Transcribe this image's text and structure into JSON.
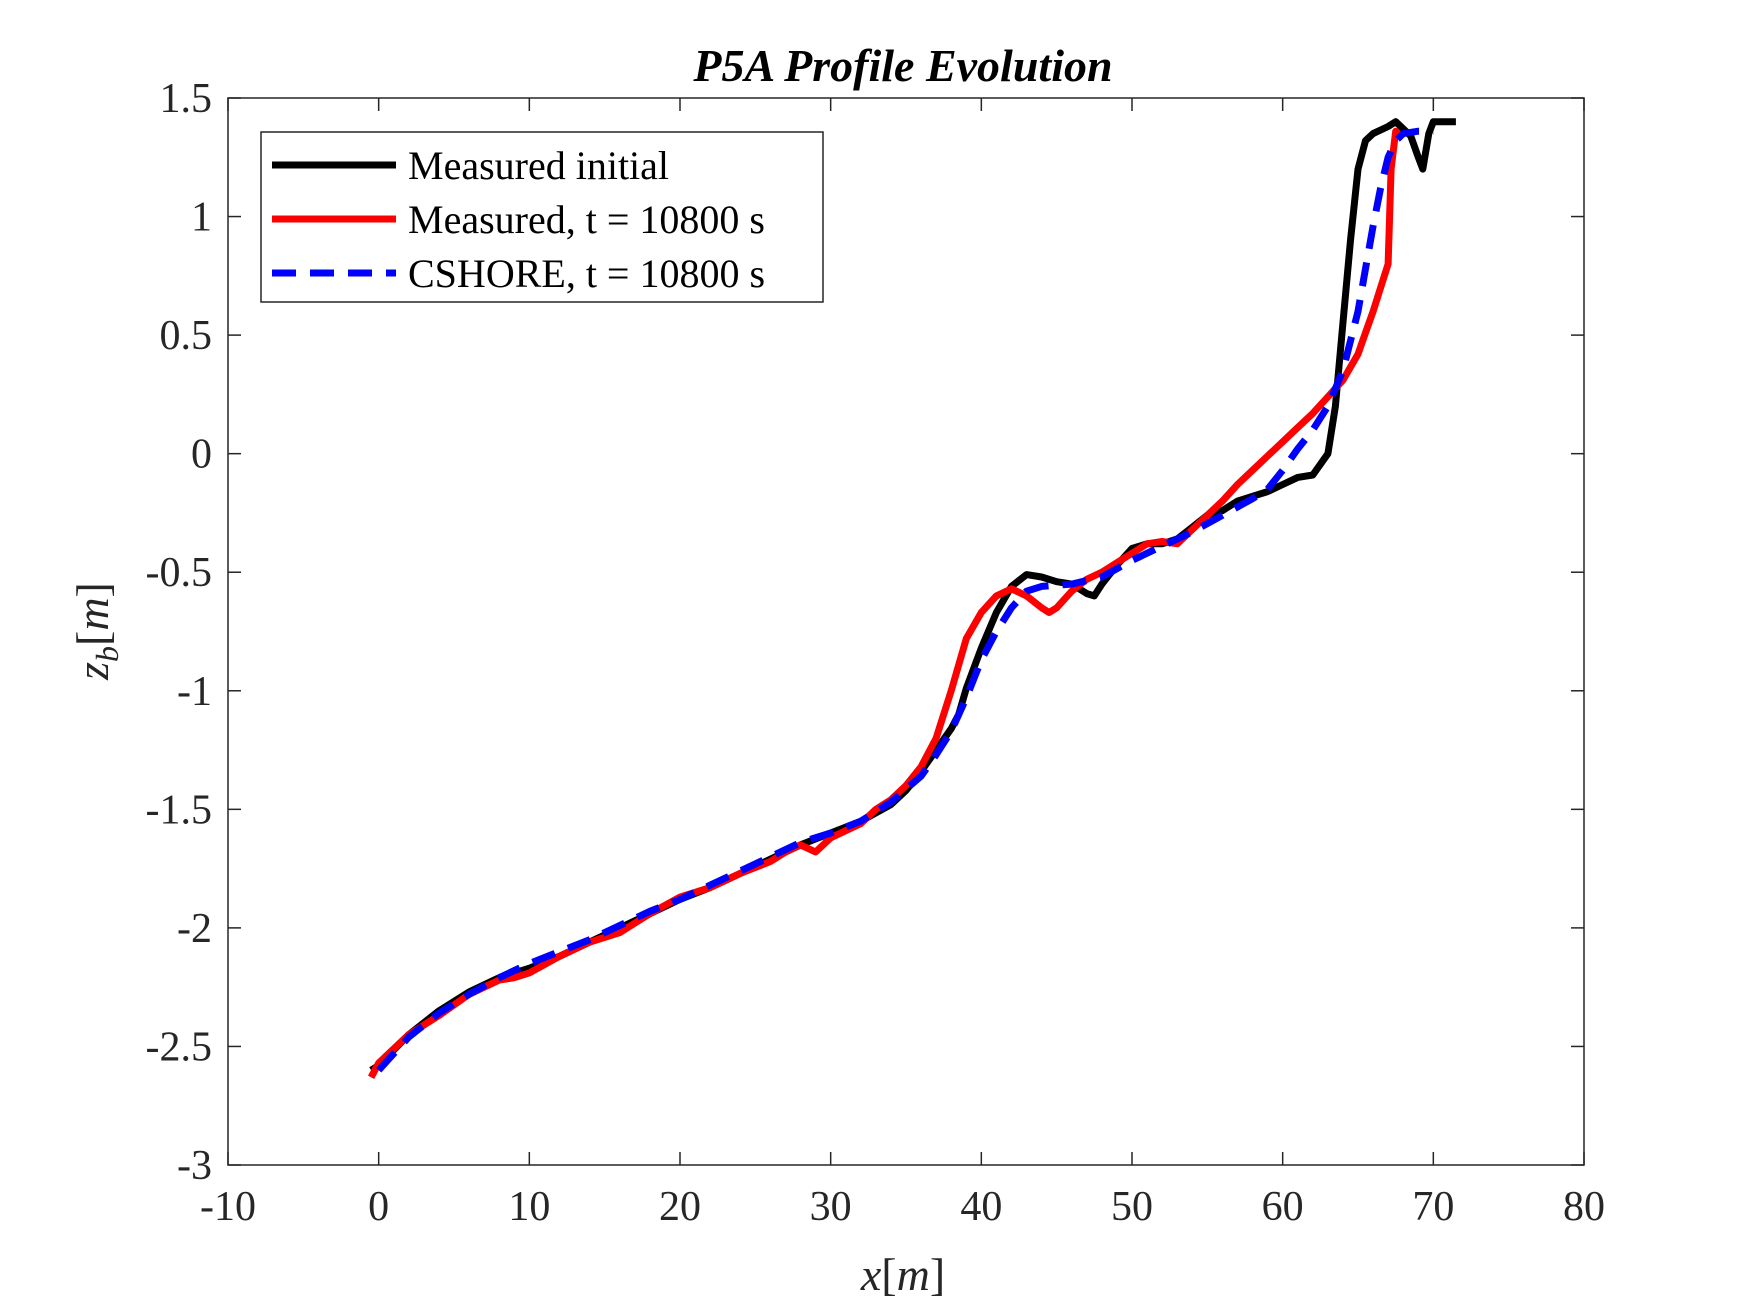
{
  "chart_data": {
    "type": "line",
    "title": "P5A Profile Evolution",
    "xlabel": "x[m]",
    "ylabel": "z_b[m]",
    "xlim": [
      -10,
      80
    ],
    "ylim": [
      -3,
      1.5
    ],
    "xticks": [
      -10,
      0,
      10,
      20,
      30,
      40,
      50,
      60,
      70,
      80
    ],
    "xtick_labels": [
      "-10",
      "0",
      "10",
      "20",
      "30",
      "40",
      "50",
      "60",
      "70",
      "80"
    ],
    "yticks": [
      -3,
      -2.5,
      -2,
      -1.5,
      -1,
      -0.5,
      0,
      0.5,
      1,
      1.5
    ],
    "ytick_labels": [
      "-3",
      "-2.5",
      "-2",
      "-1.5",
      "-1",
      "-0.5",
      "0",
      "0.5",
      "1",
      "1.5"
    ],
    "grid": false,
    "legend_position": "top-left",
    "series": [
      {
        "name": "Measured initial",
        "color": "#000000",
        "style": "solid",
        "x": [
          -0.5,
          0,
          2,
          4,
          6,
          8,
          10,
          12,
          14,
          16,
          18,
          20,
          22,
          24,
          26,
          28,
          30,
          32,
          34,
          35,
          36,
          37,
          38,
          38.5,
          39,
          40,
          41,
          42,
          43,
          44,
          45,
          46,
          47,
          47.5,
          48,
          49,
          50,
          51,
          52,
          53,
          54,
          55,
          56,
          57,
          58,
          59,
          60,
          61,
          62,
          63,
          63.5,
          64,
          64.5,
          65,
          65.5,
          66,
          67,
          67.5,
          68,
          68.5,
          69,
          69.3,
          69.7,
          70,
          70.5,
          71,
          71.5
        ],
        "y": [
          -2.6,
          -2.58,
          -2.45,
          -2.35,
          -2.27,
          -2.21,
          -2.17,
          -2.12,
          -2.06,
          -2.0,
          -1.94,
          -1.88,
          -1.83,
          -1.77,
          -1.71,
          -1.65,
          -1.6,
          -1.55,
          -1.48,
          -1.42,
          -1.34,
          -1.25,
          -1.16,
          -1.1,
          -0.99,
          -0.82,
          -0.67,
          -0.56,
          -0.51,
          -0.52,
          -0.54,
          -0.55,
          -0.59,
          -0.6,
          -0.55,
          -0.47,
          -0.4,
          -0.38,
          -0.38,
          -0.36,
          -0.31,
          -0.26,
          -0.24,
          -0.2,
          -0.18,
          -0.16,
          -0.13,
          -0.1,
          -0.09,
          0.0,
          0.2,
          0.55,
          0.9,
          1.2,
          1.32,
          1.35,
          1.38,
          1.4,
          1.37,
          1.34,
          1.25,
          1.2,
          1.35,
          1.4,
          1.4,
          1.4,
          1.4
        ]
      },
      {
        "name": "Measured, t = 10800 s",
        "color": "#ff0000",
        "style": "solid",
        "x": [
          -0.5,
          0,
          2,
          4,
          6,
          8,
          9,
          10,
          12,
          14,
          16,
          18,
          20,
          22,
          24,
          26,
          27,
          28,
          29,
          30,
          32,
          33,
          34,
          35,
          36,
          37,
          38,
          39,
          40,
          41,
          42,
          43,
          44,
          44.5,
          45,
          46,
          47,
          48,
          49,
          50,
          51,
          52,
          53,
          54,
          55,
          56,
          57,
          58,
          59,
          60,
          61,
          62,
          63,
          64,
          65,
          65.5,
          66,
          66.5,
          67,
          67.2,
          67.5,
          68
        ],
        "y": [
          -2.63,
          -2.57,
          -2.45,
          -2.37,
          -2.28,
          -2.22,
          -2.21,
          -2.19,
          -2.12,
          -2.06,
          -2.02,
          -1.94,
          -1.87,
          -1.83,
          -1.77,
          -1.72,
          -1.68,
          -1.65,
          -1.68,
          -1.62,
          -1.56,
          -1.5,
          -1.46,
          -1.4,
          -1.32,
          -1.2,
          -1.0,
          -0.78,
          -0.67,
          -0.6,
          -0.57,
          -0.6,
          -0.65,
          -0.67,
          -0.65,
          -0.58,
          -0.53,
          -0.5,
          -0.46,
          -0.42,
          -0.38,
          -0.37,
          -0.38,
          -0.32,
          -0.26,
          -0.2,
          -0.13,
          -0.07,
          -0.01,
          0.05,
          0.11,
          0.17,
          0.24,
          0.31,
          0.42,
          0.51,
          0.6,
          0.7,
          0.8,
          1.2,
          1.36,
          1.33
        ]
      },
      {
        "name": "CSHORE, t = 10800 s",
        "color": "#0000ff",
        "style": "dashed",
        "x": [
          0,
          2,
          4,
          6,
          8,
          10,
          12,
          14,
          16,
          18,
          20,
          22,
          24,
          26,
          28,
          30,
          32,
          34,
          36,
          37,
          38,
          39,
          40,
          41,
          42,
          43,
          44,
          46,
          48,
          50,
          52,
          54,
          56,
          58,
          59,
          60,
          61,
          62,
          63,
          64,
          65,
          65.5,
          66,
          66.5,
          67,
          67.5,
          68,
          69,
          70
        ],
        "y": [
          -2.6,
          -2.46,
          -2.36,
          -2.28,
          -2.21,
          -2.15,
          -2.1,
          -2.05,
          -1.99,
          -1.93,
          -1.88,
          -1.82,
          -1.76,
          -1.7,
          -1.64,
          -1.6,
          -1.55,
          -1.47,
          -1.36,
          -1.27,
          -1.17,
          -1.03,
          -0.87,
          -0.75,
          -0.65,
          -0.58,
          -0.56,
          -0.55,
          -0.52,
          -0.45,
          -0.39,
          -0.33,
          -0.26,
          -0.19,
          -0.15,
          -0.07,
          0.02,
          0.1,
          0.2,
          0.35,
          0.6,
          0.78,
          0.96,
          1.12,
          1.25,
          1.32,
          1.35,
          1.36,
          1.36
        ]
      }
    ]
  }
}
